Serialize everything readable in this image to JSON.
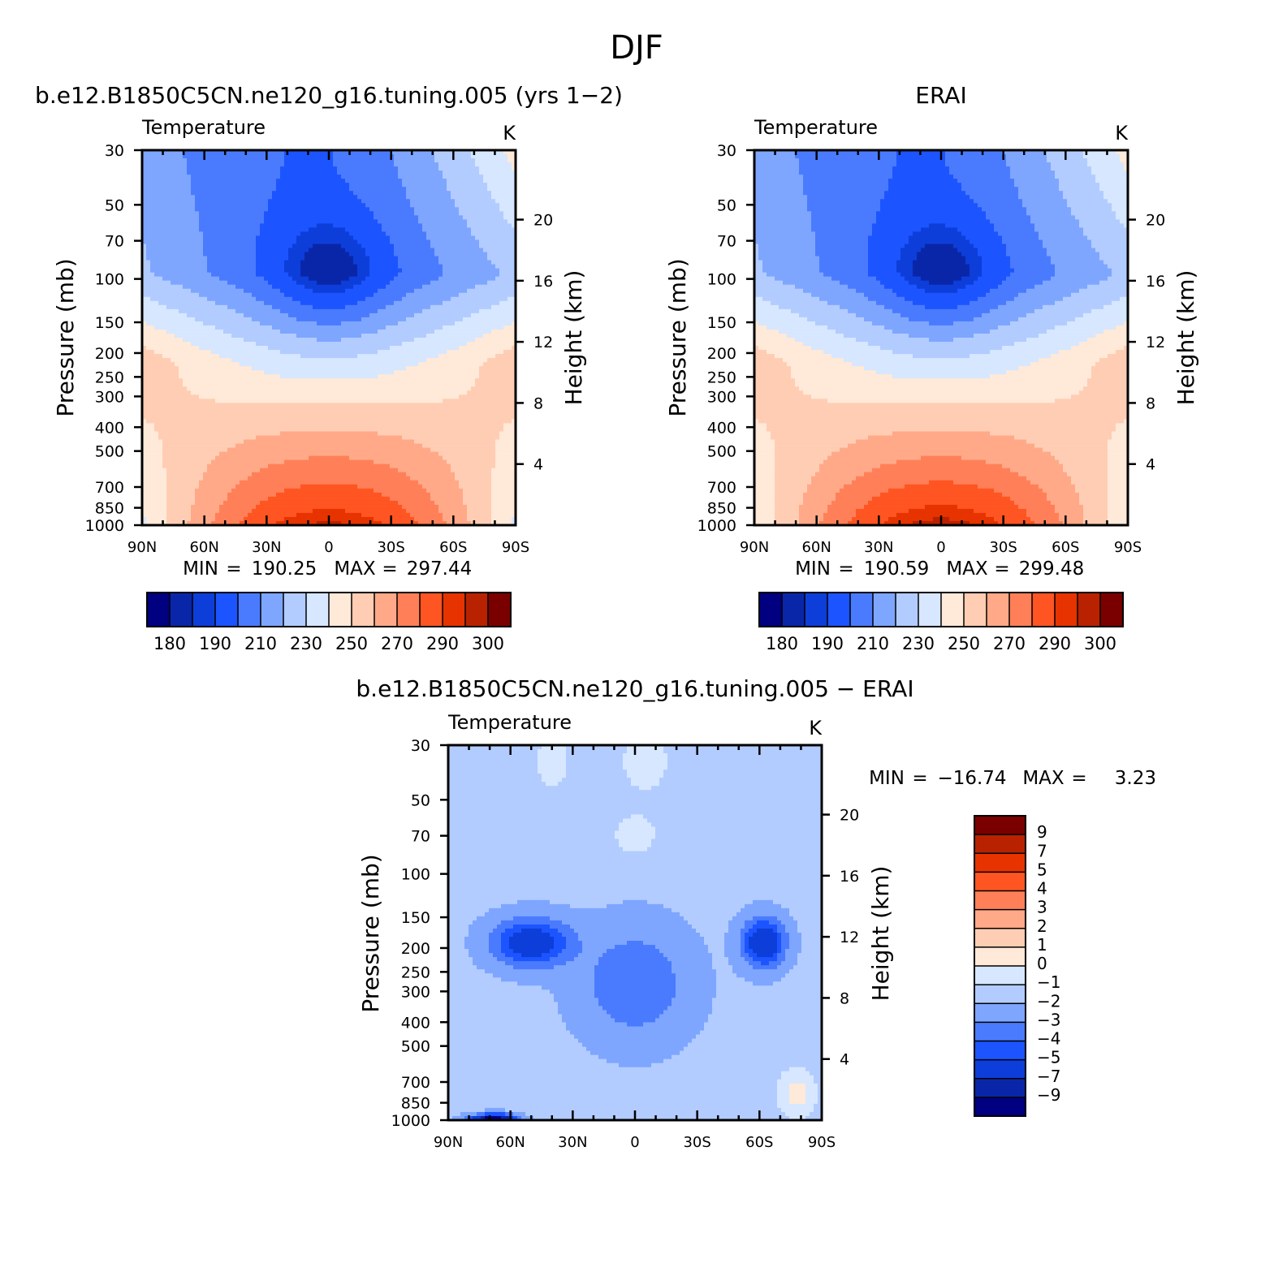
{
  "figure_title": "DJF",
  "colors": {
    "temperature_scale": [
      "#000080",
      "#0a26a8",
      "#0d3ed9",
      "#1c54ff",
      "#4a7bff",
      "#7ea6ff",
      "#b2ccff",
      "#d6e7ff",
      "#ffe9d8",
      "#ffcdb3",
      "#ffa988",
      "#ff8058",
      "#ff5522",
      "#e63300",
      "#b82200",
      "#7a0000"
    ],
    "difference_scale": [
      "#000080",
      "#0a26a8",
      "#0d3ed9",
      "#1c54ff",
      "#4a7bff",
      "#7ea6ff",
      "#b2ccff",
      "#d6e7ff",
      "#ffe9d8",
      "#ffcdb3",
      "#ffa988",
      "#ff8058",
      "#ff5522",
      "#e63300",
      "#b82200",
      "#7a0000"
    ]
  },
  "chart_data": [
    {
      "type": "heatmap",
      "title": "b.e12.B1850C5CN.ne120_g16.tuning.005 (yrs 1−2)",
      "subtitle": "Temperature",
      "units": "K",
      "xlabel": "",
      "ylabel": "Pressure (mb)",
      "y2label": "Height (km)",
      "x_ticks": [
        "90N",
        "60N",
        "30N",
        "0",
        "30S",
        "60S",
        "90S"
      ],
      "y_ticks": [
        "30",
        "50",
        "70",
        "100",
        "150",
        "200",
        "250",
        "300",
        "400",
        "500",
        "700",
        "850",
        "1000"
      ],
      "y2_ticks": [
        "20",
        "16",
        "12",
        "8",
        "4"
      ],
      "y_scale": "log",
      "ylim": [
        1000,
        30
      ],
      "stats": {
        "min_label": "MIN",
        "min": "190.25",
        "max_label": "MAX",
        "max": "297.44"
      },
      "colorbar": {
        "levels": [
          "180",
          "190",
          "210",
          "230",
          "250",
          "270",
          "290",
          "300"
        ],
        "orientation": "horizontal"
      }
    },
    {
      "type": "heatmap",
      "title": "ERAI",
      "subtitle": "Temperature",
      "units": "K",
      "xlabel": "",
      "ylabel": "Pressure (mb)",
      "y2label": "Height (km)",
      "x_ticks": [
        "90N",
        "60N",
        "30N",
        "0",
        "30S",
        "60S",
        "90S"
      ],
      "y_ticks": [
        "30",
        "50",
        "70",
        "100",
        "150",
        "200",
        "250",
        "300",
        "400",
        "500",
        "700",
        "850",
        "1000"
      ],
      "y2_ticks": [
        "20",
        "16",
        "12",
        "8",
        "4"
      ],
      "y_scale": "log",
      "ylim": [
        1000,
        30
      ],
      "stats": {
        "min_label": "MIN",
        "min": "190.59",
        "max_label": "MAX",
        "max": "299.48"
      },
      "colorbar": {
        "levels": [
          "180",
          "190",
          "210",
          "230",
          "250",
          "270",
          "290",
          "300"
        ],
        "orientation": "horizontal"
      }
    },
    {
      "type": "heatmap",
      "title": "b.e12.B1850C5CN.ne120_g16.tuning.005 − ERAI",
      "subtitle": "Temperature",
      "units": "K",
      "xlabel": "",
      "ylabel": "Pressure (mb)",
      "y2label": "Height (km)",
      "x_ticks": [
        "90N",
        "60N",
        "30N",
        "0",
        "30S",
        "60S",
        "90S"
      ],
      "y_ticks": [
        "30",
        "50",
        "70",
        "100",
        "150",
        "200",
        "250",
        "300",
        "400",
        "500",
        "700",
        "850",
        "1000"
      ],
      "y2_ticks": [
        "20",
        "16",
        "12",
        "8",
        "4"
      ],
      "y_scale": "log",
      "ylim": [
        1000,
        30
      ],
      "stats": {
        "min_label": "MIN",
        "min": "−16.74",
        "max_label": "MAX",
        "max": "3.23"
      },
      "colorbar": {
        "levels": [
          "9",
          "7",
          "5",
          "4",
          "3",
          "2",
          "1",
          "0",
          "−1",
          "−2",
          "−3",
          "−4",
          "−5",
          "−7",
          "−9"
        ],
        "orientation": "vertical"
      }
    }
  ]
}
